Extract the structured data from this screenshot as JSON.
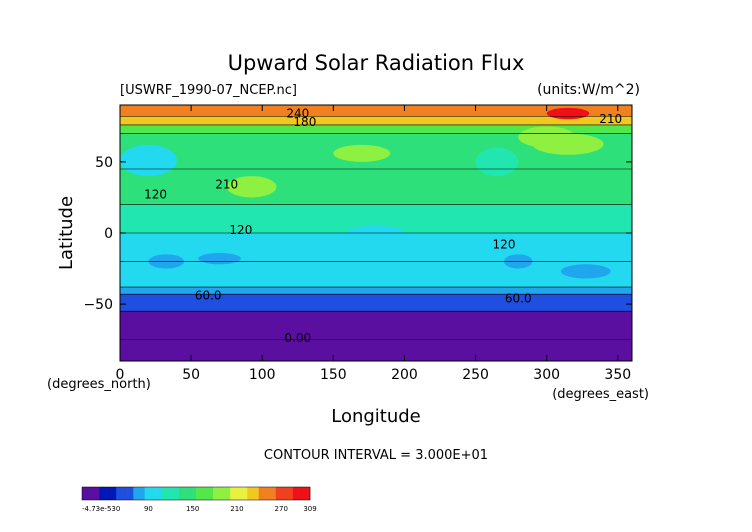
{
  "chart_data": {
    "type": "heatmap",
    "title": "Upward Solar Radiation Flux",
    "file_label": "[USWRF_1990-07_NCEP.nc]",
    "units_label": "(units:W/m^2)",
    "xlabel": "Longitude",
    "ylabel": "Latitude",
    "x_unit_label": "(degrees_east)",
    "y_unit_label": "(degrees_north)",
    "xlim": [
      0,
      360
    ],
    "ylim": [
      -90,
      90
    ],
    "x_ticks": [
      0,
      50,
      100,
      150,
      200,
      250,
      300,
      350
    ],
    "y_ticks": [
      -50,
      0,
      50
    ],
    "contour_interval_label": "CONTOUR INTERVAL = 3.000E+01",
    "contour_labels": [
      {
        "text": "240",
        "lon": 125,
        "lat": 84
      },
      {
        "text": "180",
        "lon": 130,
        "lat": 78
      },
      {
        "text": "210",
        "lon": 345,
        "lat": 80
      },
      {
        "text": "120",
        "lon": 25,
        "lat": 27
      },
      {
        "text": "210",
        "lon": 75,
        "lat": 34
      },
      {
        "text": "120",
        "lon": 85,
        "lat": 2
      },
      {
        "text": "120",
        "lon": 270,
        "lat": -8
      },
      {
        "text": "60.0",
        "lon": 62,
        "lat": -44
      },
      {
        "text": "60.0",
        "lon": 280,
        "lat": -46
      },
      {
        "text": "0.00",
        "lon": 125,
        "lat": -74
      }
    ],
    "zonal_bands": [
      {
        "lat_min": -90,
        "lat_max": -75,
        "value": 0
      },
      {
        "lat_min": -75,
        "lat_max": -55,
        "value": 20
      },
      {
        "lat_min": -55,
        "lat_max": -43,
        "value": 50
      },
      {
        "lat_min": -43,
        "lat_max": -38,
        "value": 75
      },
      {
        "lat_min": -38,
        "lat_max": -20,
        "value": 95
      },
      {
        "lat_min": -20,
        "lat_max": 0,
        "value": 110
      },
      {
        "lat_min": 0,
        "lat_max": 20,
        "value": 130
      },
      {
        "lat_min": 20,
        "lat_max": 45,
        "value": 150
      },
      {
        "lat_min": 45,
        "lat_max": 70,
        "value": 145
      },
      {
        "lat_min": 70,
        "lat_max": 76,
        "value": 175
      },
      {
        "lat_min": 76,
        "lat_max": 82,
        "value": 225
      },
      {
        "lat_min": 82,
        "lat_max": 90,
        "value": 255
      }
    ],
    "patches": [
      {
        "lon": [
          0,
          40
        ],
        "lat": [
          40,
          62
        ],
        "value": 110
      },
      {
        "lon": [
          20,
          45
        ],
        "lat": [
          -25,
          -15
        ],
        "value": 75
      },
      {
        "lon": [
          55,
          85
        ],
        "lat": [
          -22,
          -14
        ],
        "value": 85
      },
      {
        "lon": [
          75,
          110
        ],
        "lat": [
          25,
          40
        ],
        "value": 185
      },
      {
        "lon": [
          150,
          190
        ],
        "lat": [
          50,
          62
        ],
        "value": 185
      },
      {
        "lon": [
          160,
          200
        ],
        "lat": [
          -5,
          5
        ],
        "value": 110
      },
      {
        "lon": [
          250,
          280
        ],
        "lat": [
          40,
          60
        ],
        "value": 120
      },
      {
        "lon": [
          280,
          320
        ],
        "lat": [
          60,
          75
        ],
        "value": 185
      },
      {
        "lon": [
          290,
          340
        ],
        "lat": [
          55,
          70
        ],
        "value": 190
      },
      {
        "lon": [
          270,
          290
        ],
        "lat": [
          -25,
          -15
        ],
        "value": 75
      },
      {
        "lon": [
          310,
          345
        ],
        "lat": [
          -32,
          -22
        ],
        "value": 80
      },
      {
        "lon": [
          300,
          330
        ],
        "lat": [
          80,
          88
        ],
        "value": 290
      }
    ],
    "colorbar": {
      "min_label": "-4.73e-530",
      "tick_labels": [
        "90",
        "150",
        "210",
        "270",
        "309"
      ],
      "vmin": 0,
      "vmax": 309,
      "ticks": [
        90,
        150,
        210,
        270,
        309
      ]
    },
    "colors": [
      "#5a0fa0",
      "#0018b8",
      "#1f4fe0",
      "#1fa6ec",
      "#22d9f0",
      "#22e6b0",
      "#2ee07a",
      "#52e84a",
      "#8ef040",
      "#e8f040",
      "#f0c820",
      "#f08020",
      "#f04020",
      "#f01018"
    ],
    "grid": false
  }
}
